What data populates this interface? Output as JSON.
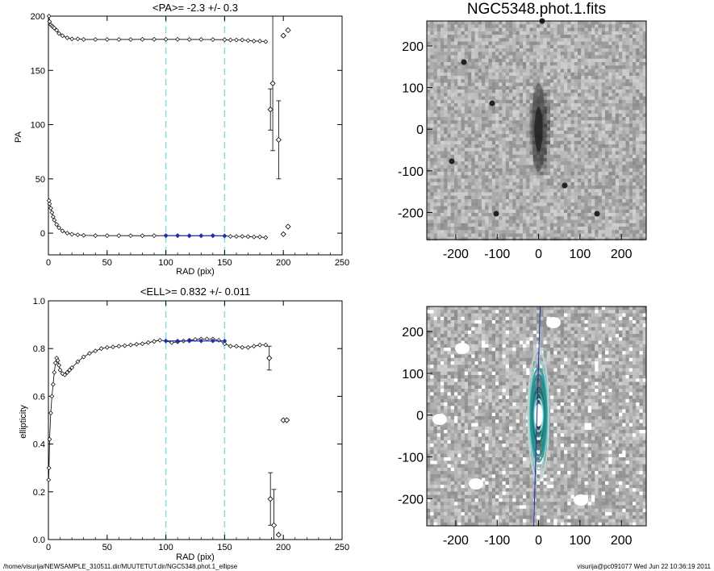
{
  "chart_data": [
    {
      "type": "scatter",
      "title": "<PA>=  -2.3 +/-   0.3",
      "xlabel": "RAD (pix)",
      "ylabel": "PA",
      "xlim": [
        0,
        250
      ],
      "ylim": [
        -20,
        200
      ],
      "xticks": [
        "0",
        "50",
        "100",
        "150",
        "200",
        "250"
      ],
      "yticks": [
        "0",
        "50",
        "100",
        "150",
        "200"
      ],
      "vlines": [
        100,
        150
      ],
      "series": [
        {
          "points": [
            [
              0.5,
              200
            ],
            [
              1,
              195
            ],
            [
              2,
              192
            ],
            [
              3,
              191
            ],
            [
              4,
              190
            ],
            [
              5,
              189
            ],
            [
              7,
              187
            ],
            [
              9,
              184
            ],
            [
              12,
              182
            ],
            [
              16,
              180
            ],
            [
              20,
              179
            ],
            [
              25,
              179
            ],
            [
              30,
              178.5
            ],
            [
              40,
              178.5
            ],
            [
              50,
              178.5
            ],
            [
              60,
              178.5
            ],
            [
              70,
              178.5
            ],
            [
              80,
              178.6
            ],
            [
              90,
              178.6
            ],
            [
              100,
              178.6
            ],
            [
              110,
              178.6
            ],
            [
              120,
              178.5
            ],
            [
              130,
              178.5
            ],
            [
              140,
              178.4
            ],
            [
              150,
              178.3
            ],
            [
              155,
              178
            ],
            [
              160,
              178
            ],
            [
              165,
              178
            ],
            [
              170,
              177.5
            ],
            [
              175,
              177
            ],
            [
              180,
              177
            ],
            [
              185,
              176.5
            ]
          ]
        },
        {
          "points": [
            [
              0.5,
              30
            ],
            [
              1,
              27
            ],
            [
              2,
              23
            ],
            [
              3,
              19
            ],
            [
              4,
              15
            ],
            [
              5,
              12
            ],
            [
              7,
              8
            ],
            [
              9,
              5
            ],
            [
              12,
              2
            ],
            [
              16,
              0
            ],
            [
              20,
              -1
            ],
            [
              25,
              -1.5
            ],
            [
              30,
              -2
            ],
            [
              40,
              -2.3
            ],
            [
              50,
              -2.3
            ],
            [
              60,
              -2.3
            ],
            [
              70,
              -2.3
            ],
            [
              80,
              -2.4
            ],
            [
              90,
              -2.3
            ],
            [
              100,
              -2.3
            ],
            [
              110,
              -2.3
            ],
            [
              120,
              -2.4
            ],
            [
              130,
              -2.4
            ],
            [
              140,
              -2.3
            ],
            [
              150,
              -2.5
            ],
            [
              155,
              -3
            ],
            [
              160,
              -3
            ],
            [
              165,
              -3
            ],
            [
              170,
              -3.2
            ],
            [
              175,
              -3.5
            ],
            [
              180,
              -3.5
            ],
            [
              185,
              -4
            ]
          ]
        },
        {
          "points": [
            [
              100,
              -2.3
            ],
            [
              110,
              -2.3
            ],
            [
              120,
              -2.4
            ],
            [
              130,
              -2.4
            ],
            [
              140,
              -2.4
            ],
            [
              150,
              -2.5
            ]
          ]
        }
      ],
      "outliers": [
        {
          "x": 189,
          "y": 114,
          "err": 19
        },
        {
          "x": 191,
          "y": 138,
          "err": 62
        },
        {
          "x": 196,
          "y": 86,
          "err": 36
        },
        {
          "x": 200,
          "y": 182,
          "err": 0
        },
        {
          "x": 204,
          "y": 187,
          "err": 0
        },
        {
          "x": 200,
          "y": -1,
          "err": 0
        },
        {
          "x": 204,
          "y": 6,
          "err": 0
        }
      ]
    },
    {
      "type": "scatter",
      "title": "<ELL>= 0.832 +/-  0.011",
      "xlabel": "RAD (pix)",
      "ylabel": "ellipticity",
      "xlim": [
        0,
        250
      ],
      "ylim": [
        0,
        1
      ],
      "xticks": [
        "0",
        "50",
        "100",
        "150",
        "200",
        "250"
      ],
      "yticks": [
        "0.0",
        "0.2",
        "0.4",
        "0.6",
        "0.8",
        "1.0"
      ],
      "vlines": [
        100,
        150
      ],
      "series": [
        {
          "points": [
            [
              0.2,
              0.25
            ],
            [
              0.5,
              0.3
            ],
            [
              1,
              0.42
            ],
            [
              2,
              0.53
            ],
            [
              3,
              0.6
            ],
            [
              4,
              0.65
            ],
            [
              5,
              0.7
            ],
            [
              6,
              0.74
            ],
            [
              7,
              0.76
            ],
            [
              8,
              0.75
            ],
            [
              9,
              0.73
            ],
            [
              10,
              0.71
            ],
            [
              12,
              0.695
            ],
            [
              14,
              0.69
            ],
            [
              16,
              0.7
            ],
            [
              18,
              0.71
            ],
            [
              20,
              0.72
            ],
            [
              25,
              0.745
            ],
            [
              30,
              0.765
            ],
            [
              35,
              0.78
            ],
            [
              40,
              0.79
            ],
            [
              45,
              0.8
            ],
            [
              50,
              0.805
            ],
            [
              55,
              0.807
            ],
            [
              60,
              0.81
            ],
            [
              65,
              0.812
            ],
            [
              70,
              0.815
            ],
            [
              75,
              0.818
            ],
            [
              80,
              0.82
            ],
            [
              85,
              0.825
            ],
            [
              90,
              0.83
            ],
            [
              95,
              0.835
            ],
            [
              100,
              0.832
            ],
            [
              105,
              0.825
            ],
            [
              110,
              0.828
            ],
            [
              115,
              0.832
            ],
            [
              120,
              0.835
            ],
            [
              125,
              0.838
            ],
            [
              130,
              0.84
            ],
            [
              135,
              0.84
            ],
            [
              140,
              0.84
            ],
            [
              145,
              0.835
            ],
            [
              150,
              0.82
            ],
            [
              155,
              0.81
            ],
            [
              160,
              0.81
            ],
            [
              165,
              0.805
            ],
            [
              170,
              0.805
            ],
            [
              175,
              0.81
            ],
            [
              180,
              0.815
            ],
            [
              185,
              0.815
            ]
          ]
        },
        {
          "points": [
            [
              100,
              0.832
            ],
            [
              110,
              0.832
            ],
            [
              120,
              0.832
            ],
            [
              130,
              0.832
            ],
            [
              140,
              0.832
            ],
            [
              150,
              0.832
            ]
          ]
        }
      ],
      "outliers": [
        {
          "x": 188,
          "y": 0.76,
          "err": 0.05
        },
        {
          "x": 189,
          "y": 0.17,
          "err": 0.11
        },
        {
          "x": 192,
          "y": 0.06,
          "err": 0.15
        },
        {
          "x": 196,
          "y": 0.02,
          "err": 0
        },
        {
          "x": 200,
          "y": 0.5,
          "err": 0
        },
        {
          "x": 203,
          "y": 0.5,
          "err": 0
        }
      ]
    },
    {
      "type": "heatmap",
      "title": "NGC5348.phot.1.fits",
      "xlim": [
        -270,
        260
      ],
      "ylim": [
        -265,
        260
      ],
      "xticks": [
        "-200",
        "-100",
        "0",
        "100",
        "200"
      ],
      "yticks": [
        "200",
        "100",
        "0",
        "-100",
        "-200"
      ]
    },
    {
      "type": "heatmap",
      "title": "",
      "xlim": [
        -270,
        260
      ],
      "ylim": [
        -265,
        260
      ],
      "xticks": [
        "-200",
        "-100",
        "0",
        "100",
        "200"
      ],
      "yticks": [
        "200",
        "100",
        "0",
        "-100",
        "-200"
      ]
    }
  ],
  "footer": {
    "path": "/home/visurija/NEWSAMPLE_310511.dir/MUUTETUT.dir/NGC5348.phot.1_ellipse",
    "user": "visurija@pc091077  Wed Jun 22 10:36:19 2011"
  },
  "colors": {
    "fit": "#1f2fb0",
    "marker": "#000000",
    "vline": "#7fdede",
    "contour": "#2aa6a6"
  }
}
